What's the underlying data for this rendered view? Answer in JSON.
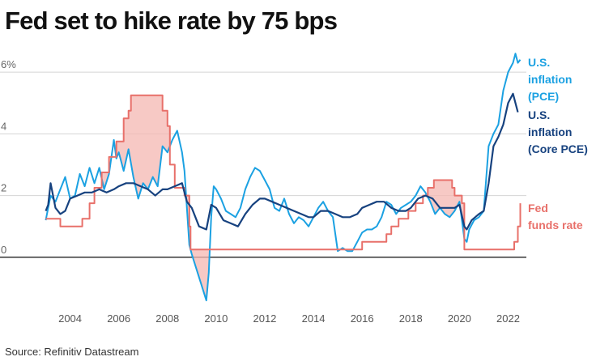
{
  "title": "Fed set to hike rate by 75 bps",
  "source": "Source: Refinitiv Datastream",
  "chart_data": {
    "type": "line",
    "title": "Fed set to hike rate by 75 bps",
    "xlabel": "",
    "ylabel": "",
    "xlim": [
      2002.85,
      2022.75
    ],
    "ylim": [
      -1.5,
      6.5
    ],
    "y_ticks": [
      {
        "value": 0,
        "label": "0"
      },
      {
        "value": 2,
        "label": "2"
      },
      {
        "value": 4,
        "label": "4"
      },
      {
        "value": 6,
        "label": "6%"
      }
    ],
    "x_ticks": [
      {
        "value": 2004,
        "label": "2004"
      },
      {
        "value": 2006,
        "label": "2006"
      },
      {
        "value": 2008,
        "label": "2008"
      },
      {
        "value": 2010,
        "label": "2010"
      },
      {
        "value": 2012,
        "label": "2012"
      },
      {
        "value": 2014,
        "label": "2014"
      },
      {
        "value": 2016,
        "label": "2016"
      },
      {
        "value": 2018,
        "label": "2018"
      },
      {
        "value": 2020,
        "label": "2020"
      },
      {
        "value": 2022,
        "label": "2022"
      }
    ],
    "series": [
      {
        "name": "Fed funds rate",
        "color": "#e8706a",
        "label_lines": [
          "Fed",
          "funds rate"
        ],
        "band": true,
        "x": [
          2003.0,
          2003.5,
          2003.6,
          2004.4,
          2004.5,
          2004.8,
          2005.0,
          2005.3,
          2005.6,
          2005.9,
          2006.2,
          2006.4,
          2006.5,
          2007.6,
          2007.8,
          2008.0,
          2008.1,
          2008.3,
          2008.7,
          2008.9,
          2008.95,
          2015.9,
          2016.0,
          2016.9,
          2017.0,
          2017.2,
          2017.5,
          2017.9,
          2018.2,
          2018.5,
          2018.7,
          2018.95,
          2019.6,
          2019.7,
          2019.8,
          2020.1,
          2020.2,
          2022.1,
          2022.25,
          2022.4,
          2022.5
        ],
        "values": [
          1.25,
          1.25,
          1.0,
          1.0,
          1.25,
          1.75,
          2.25,
          2.75,
          3.25,
          3.75,
          4.5,
          4.75,
          5.25,
          5.25,
          4.75,
          4.25,
          3.0,
          2.25,
          2.0,
          1.0,
          0.25,
          0.25,
          0.5,
          0.5,
          0.75,
          1.0,
          1.25,
          1.5,
          1.75,
          2.0,
          2.25,
          2.5,
          2.5,
          2.25,
          2.0,
          1.75,
          0.25,
          0.25,
          0.5,
          1.0,
          1.75
        ]
      },
      {
        "name": "U.S. inflation (PCE)",
        "color": "#1ba1e2",
        "label_lines": [
          "U.S.",
          "inflation",
          "(PCE)"
        ],
        "x": [
          2003.0,
          2003.2,
          2003.4,
          2003.6,
          2003.8,
          2004.0,
          2004.2,
          2004.4,
          2004.6,
          2004.8,
          2005.0,
          2005.2,
          2005.4,
          2005.6,
          2005.8,
          2005.9,
          2006.0,
          2006.2,
          2006.4,
          2006.6,
          2006.8,
          2007.0,
          2007.2,
          2007.4,
          2007.6,
          2007.8,
          2007.9,
          2008.0,
          2008.2,
          2008.4,
          2008.6,
          2008.7,
          2008.8,
          2008.9,
          2009.0,
          2009.2,
          2009.4,
          2009.6,
          2009.7,
          2009.8,
          2009.9,
          2010.0,
          2010.2,
          2010.4,
          2010.6,
          2010.8,
          2011.0,
          2011.2,
          2011.4,
          2011.6,
          2011.8,
          2012.0,
          2012.2,
          2012.4,
          2012.6,
          2012.8,
          2013.0,
          2013.2,
          2013.4,
          2013.6,
          2013.8,
          2014.0,
          2014.2,
          2014.4,
          2014.6,
          2014.8,
          2015.0,
          2015.2,
          2015.4,
          2015.6,
          2015.8,
          2016.0,
          2016.2,
          2016.4,
          2016.6,
          2016.8,
          2017.0,
          2017.2,
          2017.4,
          2017.6,
          2017.8,
          2018.0,
          2018.2,
          2018.4,
          2018.6,
          2018.8,
          2019.0,
          2019.2,
          2019.4,
          2019.6,
          2019.8,
          2020.0,
          2020.2,
          2020.3,
          2020.4,
          2020.6,
          2020.8,
          2021.0,
          2021.2,
          2021.4,
          2021.6,
          2021.8,
          2022.0,
          2022.2,
          2022.3,
          2022.4,
          2022.5
        ],
        "values": [
          1.2,
          2.0,
          1.8,
          2.2,
          2.6,
          1.9,
          2.0,
          2.7,
          2.3,
          2.9,
          2.4,
          2.9,
          2.2,
          2.7,
          3.8,
          3.2,
          3.4,
          2.8,
          3.5,
          2.6,
          1.9,
          2.4,
          2.2,
          2.6,
          2.3,
          3.6,
          3.5,
          3.4,
          3.8,
          4.1,
          3.4,
          2.8,
          1.6,
          0.4,
          0.1,
          -0.4,
          -0.9,
          -1.4,
          -0.5,
          1.3,
          2.3,
          2.2,
          1.9,
          1.5,
          1.4,
          1.3,
          1.6,
          2.2,
          2.6,
          2.9,
          2.8,
          2.5,
          2.2,
          1.6,
          1.5,
          1.9,
          1.4,
          1.1,
          1.3,
          1.2,
          1.0,
          1.3,
          1.6,
          1.8,
          1.5,
          1.3,
          0.2,
          0.3,
          0.2,
          0.2,
          0.5,
          0.8,
          0.9,
          0.9,
          1.0,
          1.3,
          1.8,
          1.7,
          1.4,
          1.6,
          1.7,
          1.8,
          2.0,
          2.3,
          2.1,
          1.8,
          1.4,
          1.6,
          1.4,
          1.3,
          1.5,
          1.8,
          0.6,
          0.5,
          0.9,
          1.2,
          1.3,
          1.5,
          3.6,
          4.0,
          4.3,
          5.4,
          6.0,
          6.3,
          6.6,
          6.3,
          6.4
        ]
      },
      {
        "name": "U.S. inflation (Core PCE)",
        "color": "#17427f",
        "label_lines": [
          "U.S.",
          "inflation",
          "(Core PCE)"
        ],
        "x": [
          2003.0,
          2003.1,
          2003.2,
          2003.4,
          2003.6,
          2003.8,
          2004.0,
          2004.3,
          2004.6,
          2004.9,
          2005.2,
          2005.5,
          2005.8,
          2006.0,
          2006.3,
          2006.6,
          2006.9,
          2007.2,
          2007.5,
          2007.8,
          2008.0,
          2008.3,
          2008.6,
          2008.8,
          2009.0,
          2009.3,
          2009.6,
          2009.8,
          2010.0,
          2010.3,
          2010.6,
          2010.9,
          2011.2,
          2011.5,
          2011.8,
          2012.0,
          2012.3,
          2012.6,
          2012.9,
          2013.2,
          2013.5,
          2013.8,
          2014.0,
          2014.3,
          2014.6,
          2014.9,
          2015.2,
          2015.5,
          2015.8,
          2016.0,
          2016.3,
          2016.6,
          2016.9,
          2017.2,
          2017.5,
          2017.8,
          2018.0,
          2018.3,
          2018.6,
          2018.9,
          2019.2,
          2019.5,
          2019.8,
          2020.0,
          2020.2,
          2020.3,
          2020.5,
          2020.8,
          2021.0,
          2021.2,
          2021.4,
          2021.6,
          2021.8,
          2022.0,
          2022.2,
          2022.4
        ],
        "values": [
          1.5,
          1.7,
          2.4,
          1.6,
          1.4,
          1.5,
          1.9,
          2.0,
          2.1,
          2.1,
          2.2,
          2.1,
          2.2,
          2.3,
          2.4,
          2.4,
          2.3,
          2.2,
          2.0,
          2.2,
          2.2,
          2.3,
          2.4,
          1.8,
          1.6,
          1.0,
          0.9,
          1.7,
          1.6,
          1.2,
          1.1,
          1.0,
          1.4,
          1.7,
          1.9,
          1.9,
          1.8,
          1.7,
          1.6,
          1.5,
          1.4,
          1.3,
          1.3,
          1.5,
          1.5,
          1.4,
          1.3,
          1.3,
          1.4,
          1.6,
          1.7,
          1.8,
          1.8,
          1.6,
          1.5,
          1.5,
          1.6,
          1.9,
          2.0,
          1.9,
          1.6,
          1.6,
          1.6,
          1.7,
          1.0,
          0.9,
          1.2,
          1.4,
          1.5,
          2.4,
          3.6,
          3.9,
          4.3,
          5.0,
          5.3,
          4.7
        ]
      }
    ]
  }
}
